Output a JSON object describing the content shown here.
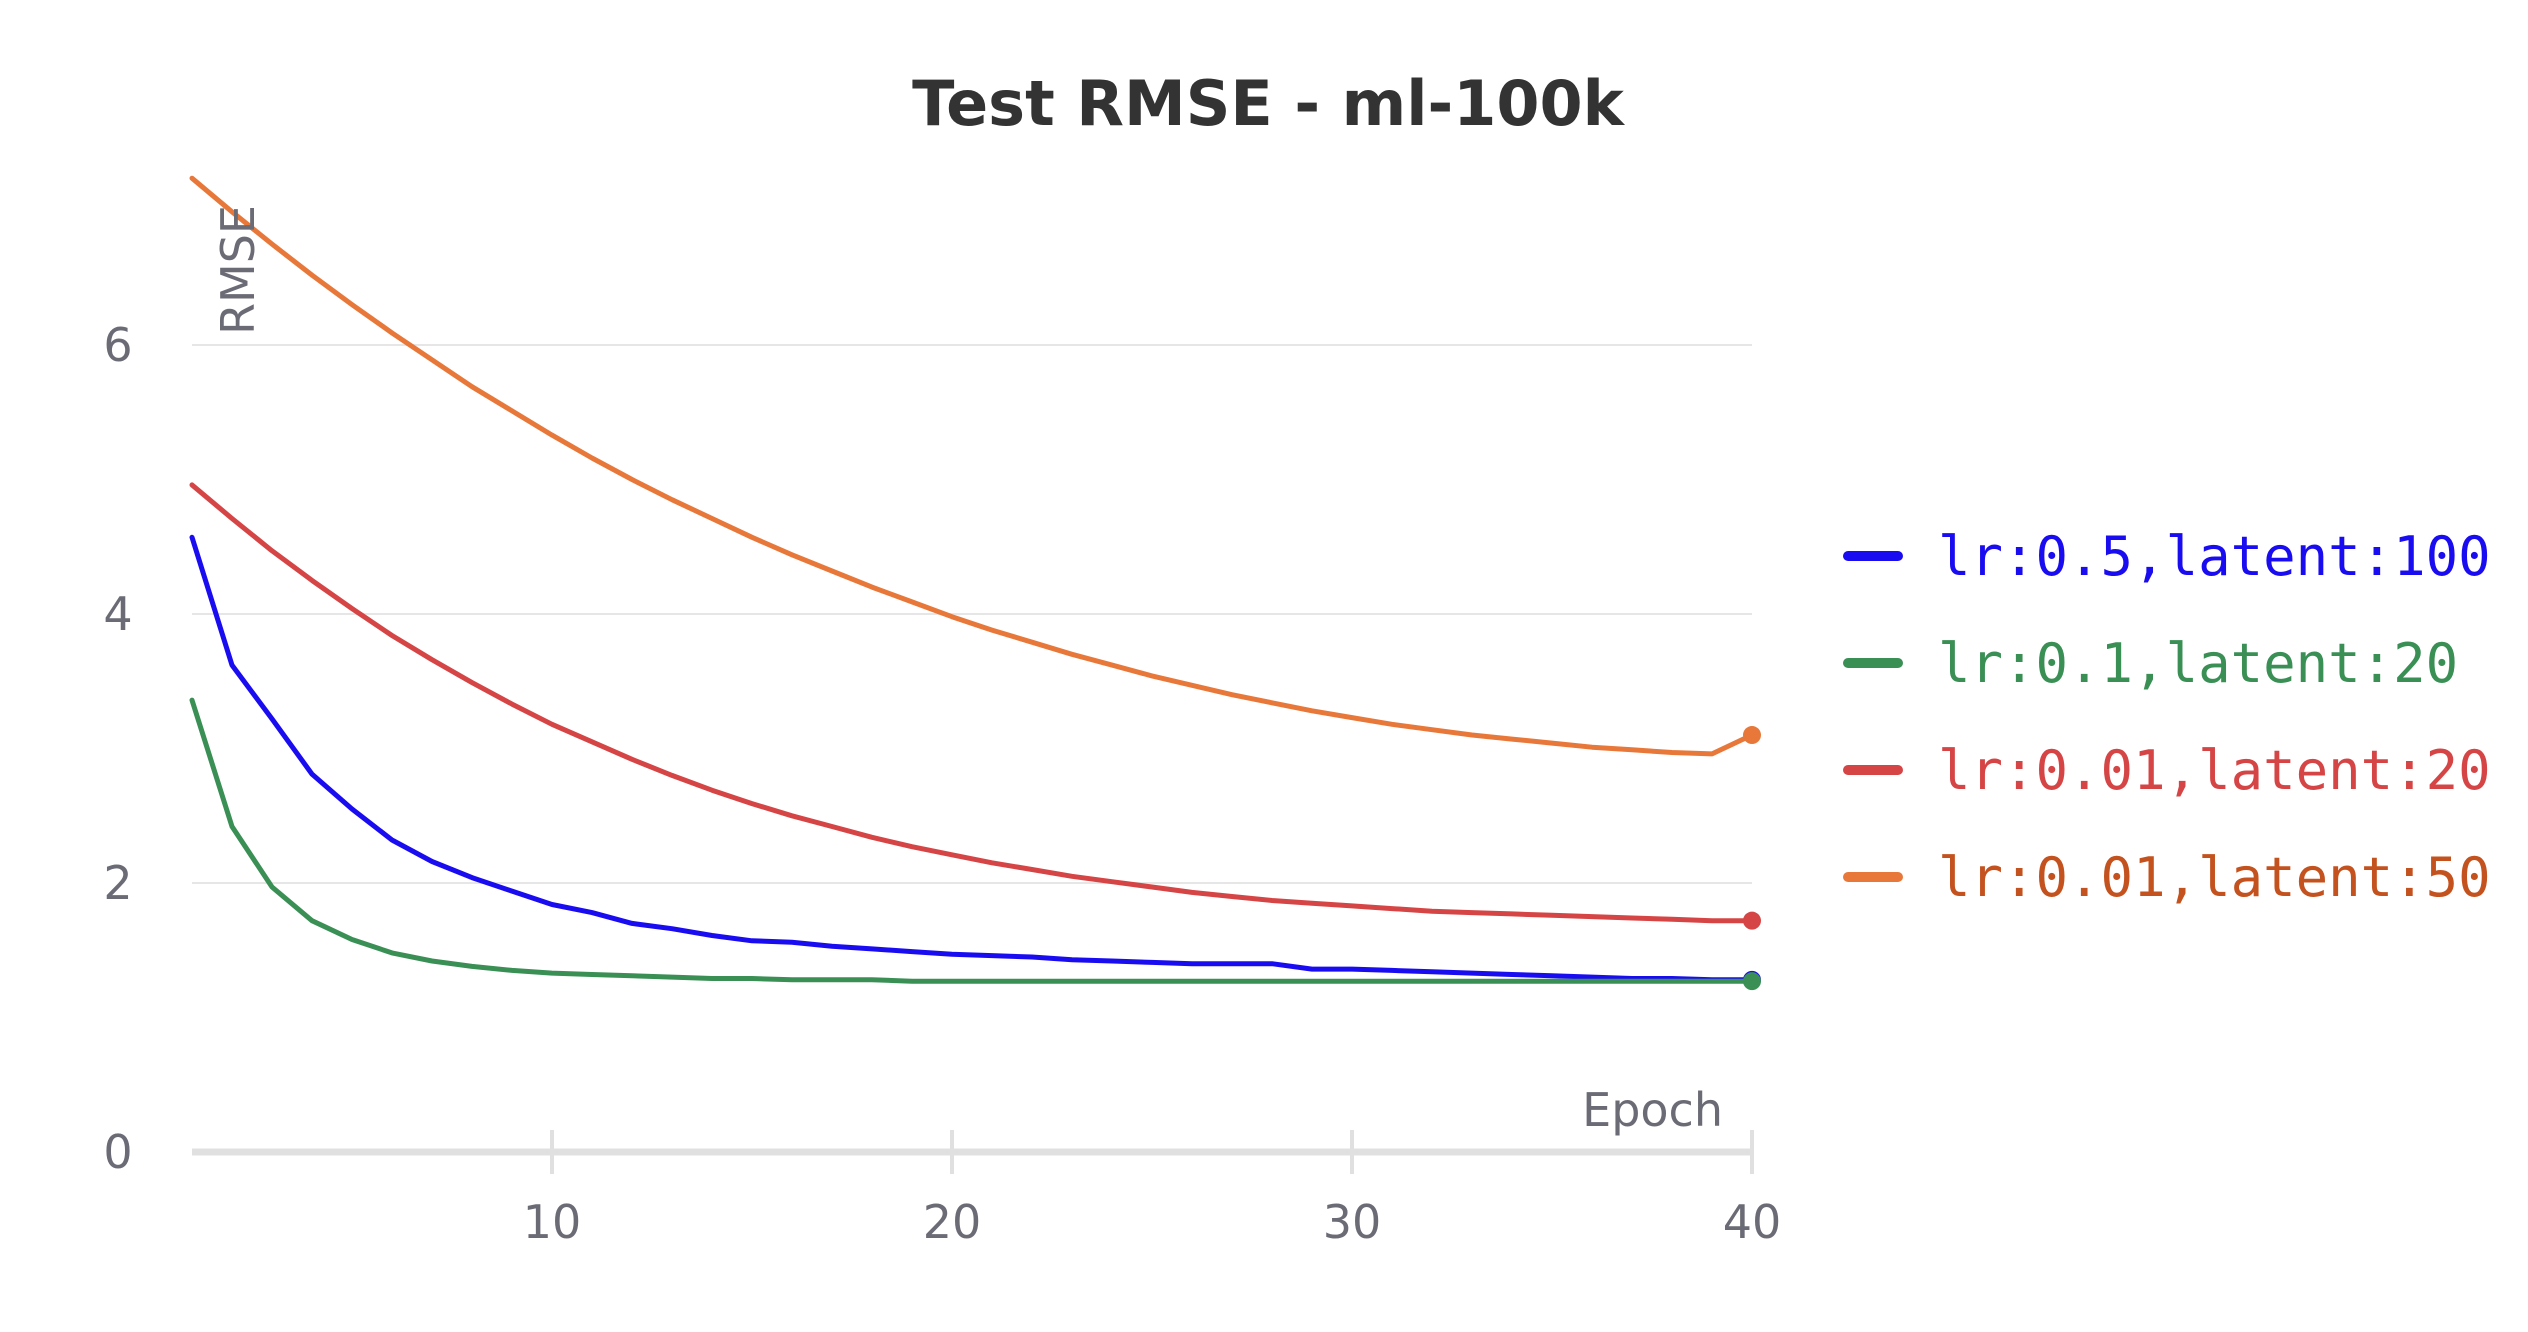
{
  "chart_data": {
    "type": "line",
    "title": "Test RMSE - ml-100k",
    "xlabel": "Epoch",
    "ylabel": "RMSE",
    "xlim": [
      1,
      40
    ],
    "ylim": [
      0,
      7.3
    ],
    "xticks": [
      10,
      20,
      30,
      40
    ],
    "yticks": [
      0,
      2,
      4,
      6
    ],
    "grid": "horizontal",
    "legend_position": "right",
    "series": [
      {
        "name": "lr:0.5,latent:100",
        "color": "#1a0cf0",
        "x": [
          1,
          2,
          3,
          4,
          5,
          6,
          7,
          8,
          9,
          10,
          11,
          12,
          13,
          14,
          15,
          16,
          17,
          18,
          19,
          20,
          21,
          22,
          23,
          24,
          25,
          26,
          27,
          28,
          29,
          30,
          31,
          32,
          33,
          34,
          35,
          36,
          37,
          38,
          39,
          40
        ],
        "y": [
          4.57,
          3.62,
          3.22,
          2.81,
          2.55,
          2.32,
          2.16,
          2.04,
          1.94,
          1.84,
          1.78,
          1.7,
          1.66,
          1.61,
          1.57,
          1.56,
          1.53,
          1.51,
          1.49,
          1.47,
          1.46,
          1.45,
          1.43,
          1.42,
          1.41,
          1.4,
          1.4,
          1.4,
          1.36,
          1.36,
          1.35,
          1.34,
          1.33,
          1.32,
          1.31,
          1.3,
          1.29,
          1.29,
          1.28,
          1.28
        ]
      },
      {
        "name": "lr:0.1,latent:20",
        "color": "#3a8f55",
        "x": [
          1,
          2,
          3,
          4,
          5,
          6,
          7,
          8,
          9,
          10,
          11,
          12,
          13,
          14,
          15,
          16,
          17,
          18,
          19,
          20,
          21,
          22,
          23,
          24,
          25,
          26,
          27,
          28,
          29,
          30,
          31,
          32,
          33,
          34,
          35,
          36,
          37,
          38,
          39,
          40
        ],
        "y": [
          3.36,
          2.42,
          1.97,
          1.72,
          1.58,
          1.48,
          1.42,
          1.38,
          1.35,
          1.33,
          1.32,
          1.31,
          1.3,
          1.29,
          1.29,
          1.28,
          1.28,
          1.28,
          1.27,
          1.27,
          1.27,
          1.27,
          1.27,
          1.27,
          1.27,
          1.27,
          1.27,
          1.27,
          1.27,
          1.27,
          1.27,
          1.27,
          1.27,
          1.27,
          1.27,
          1.27,
          1.27,
          1.27,
          1.27,
          1.27
        ]
      },
      {
        "name": "lr:0.01,latent:20",
        "color": "#d64545",
        "x": [
          1,
          2,
          3,
          4,
          5,
          6,
          7,
          8,
          9,
          10,
          11,
          12,
          13,
          14,
          15,
          16,
          17,
          18,
          19,
          20,
          21,
          22,
          23,
          24,
          25,
          26,
          27,
          28,
          29,
          30,
          31,
          32,
          33,
          34,
          35,
          36,
          37,
          38,
          39,
          40
        ],
        "y": [
          4.96,
          4.71,
          4.47,
          4.25,
          4.04,
          3.84,
          3.66,
          3.49,
          3.33,
          3.18,
          3.05,
          2.92,
          2.8,
          2.69,
          2.59,
          2.5,
          2.42,
          2.34,
          2.27,
          2.21,
          2.15,
          2.1,
          2.05,
          2.01,
          1.97,
          1.93,
          1.9,
          1.87,
          1.85,
          1.83,
          1.81,
          1.79,
          1.78,
          1.77,
          1.76,
          1.75,
          1.74,
          1.73,
          1.72,
          1.72
        ]
      },
      {
        "name": "lr:0.01,latent:50",
        "color": "#e8783a",
        "x": [
          1,
          2,
          3,
          4,
          5,
          6,
          7,
          8,
          9,
          10,
          11,
          12,
          13,
          14,
          15,
          16,
          17,
          18,
          19,
          20,
          21,
          22,
          23,
          24,
          25,
          26,
          27,
          28,
          29,
          30,
          31,
          32,
          33,
          34,
          35,
          36,
          37,
          38,
          39,
          40
        ],
        "y": [
          7.24,
          6.99,
          6.75,
          6.52,
          6.3,
          6.09,
          5.89,
          5.69,
          5.51,
          5.33,
          5.16,
          5.0,
          4.85,
          4.71,
          4.57,
          4.44,
          4.32,
          4.2,
          4.09,
          3.98,
          3.88,
          3.79,
          3.7,
          3.62,
          3.54,
          3.47,
          3.4,
          3.34,
          3.28,
          3.23,
          3.18,
          3.14,
          3.1,
          3.07,
          3.04,
          3.01,
          2.99,
          2.97,
          2.96,
          3.1
        ]
      }
    ],
    "legend_text_colors": [
      "#1a0cf0",
      "#3a8f55",
      "#d64545",
      "#c4521e"
    ]
  }
}
